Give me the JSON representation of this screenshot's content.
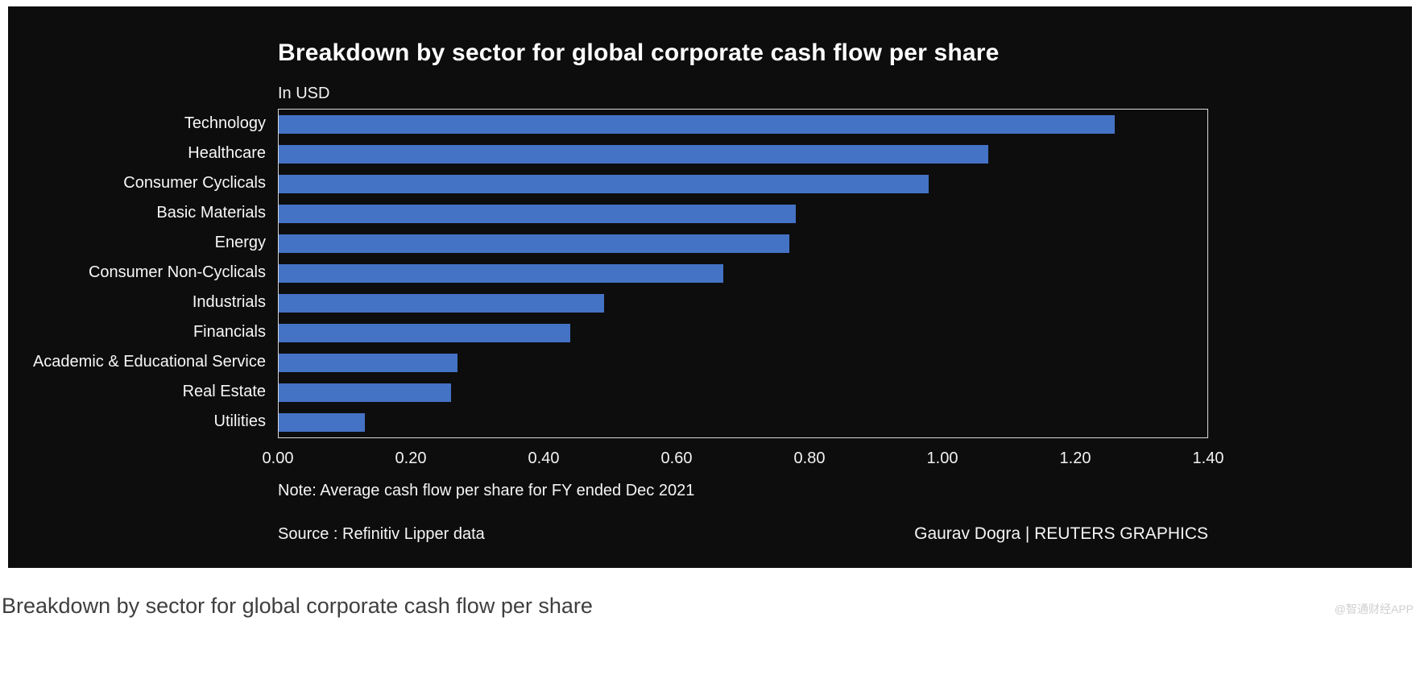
{
  "chart_data": {
    "type": "bar",
    "orientation": "horizontal",
    "title": "Breakdown by sector for global corporate cash flow per share",
    "units_label": "In USD",
    "categories": [
      "Technology",
      "Healthcare",
      "Consumer Cyclicals",
      "Basic Materials",
      "Energy",
      "Consumer Non-Cyclicals",
      "Industrials",
      "Financials",
      "Academic & Educational Service",
      "Real Estate",
      "Utilities"
    ],
    "values": [
      1.26,
      1.07,
      0.98,
      0.78,
      0.77,
      0.67,
      0.49,
      0.44,
      0.27,
      0.26,
      0.13
    ],
    "xlim": [
      0,
      1.4
    ],
    "x_ticks": [
      "0.00",
      "0.20",
      "0.40",
      "0.60",
      "0.80",
      "1.00",
      "1.20",
      "1.40"
    ],
    "x_tick_values": [
      0,
      0.2,
      0.4,
      0.6,
      0.8,
      1.0,
      1.2,
      1.4
    ],
    "bar_color": "#4472c4",
    "background_color": "#0d0d0d",
    "grid": false,
    "legend": "none",
    "note": "Note: Average cash flow per share for FY ended Dec 2021",
    "source": "Source : Refinitiv Lipper data",
    "credit": "Gaurav Dogra | REUTERS GRAPHICS"
  },
  "caption": "Breakdown by sector for global corporate cash flow per share",
  "watermark": "@智通财经APP"
}
